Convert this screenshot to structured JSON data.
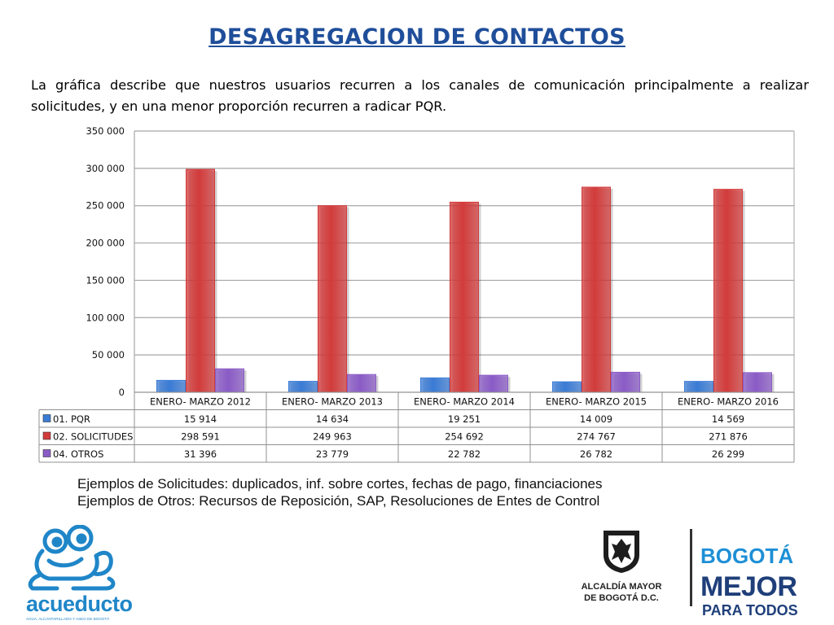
{
  "page": {
    "title": "DESAGREGACION DE CONTACTOS",
    "description": "La gráfica describe que nuestros usuarios recurren a los canales de comunicación principalmente a realizar solicitudes, y en una menor proporción recurren a radicar PQR.",
    "notes": [
      "Ejemplos de Solicitudes: duplicados, inf. sobre cortes, fechas de pago, financiaciones",
      "Ejemplos de Otros: Recursos de Reposición, SAP, Resoluciones de Entes de Control"
    ]
  },
  "logos": {
    "left_name": "acueducto",
    "left_tagline": "AGUA, ALCANTARILLADO Y ASEO DE BOGOTÁ",
    "seal_line1": "ALCALDÍA MAYOR",
    "seal_line2": "DE BOGOTÁ D.C.",
    "bogota_line1": "BOGOTÁ",
    "bogota_line2": "MEJOR",
    "bogota_line3": "PARA TODOS"
  },
  "colors": {
    "title": "#1f4e9a",
    "pqr": "#3a7bd5",
    "solicitudes": "#d23b3b",
    "otros": "#8a5bc6",
    "grid": "#a6a6a6"
  },
  "chart_data": {
    "type": "bar",
    "categories": [
      "ENERO- MARZO 2012",
      "ENERO- MARZO 2013",
      "ENERO- MARZO 2014",
      "ENERO- MARZO 2015",
      "ENERO- MARZO 2016"
    ],
    "series": [
      {
        "name": "01. PQR",
        "values": [
          15914,
          14634,
          19251,
          14009,
          14569
        ],
        "labels": [
          "15 914",
          "14 634",
          "19 251",
          "14 009",
          "14 569"
        ],
        "color": "#3a7bd5"
      },
      {
        "name": "02. SOLICITUDES",
        "values": [
          298591,
          249963,
          254692,
          274767,
          271876
        ],
        "labels": [
          "298 591",
          "249 963",
          "254 692",
          "274 767",
          "271 876"
        ],
        "color": "#d23b3b"
      },
      {
        "name": "04. OTROS",
        "values": [
          31396,
          23779,
          22782,
          26782,
          26299
        ],
        "labels": [
          "31 396",
          "23 779",
          "22 782",
          "26 782",
          "26 299"
        ],
        "color": "#8a5bc6"
      }
    ],
    "yticks": [
      "0",
      "50 000",
      "100 000",
      "150 000",
      "200 000",
      "250 000",
      "300 000",
      "350 000"
    ],
    "ylim": [
      0,
      350000
    ],
    "grid": true,
    "legend": "data-table"
  }
}
